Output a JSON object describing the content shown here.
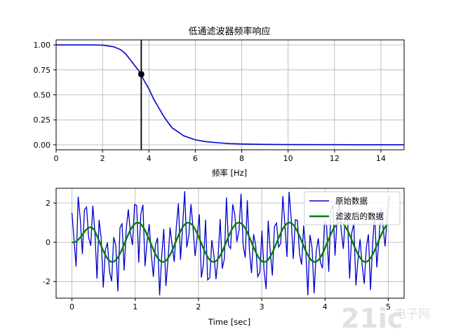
{
  "chart_data": [
    {
      "type": "line",
      "title": "低通滤波器频率响应",
      "xlabel": "频率 [Hz]",
      "ylabel": "",
      "xlim": [
        0,
        15
      ],
      "ylim": [
        -0.05,
        1.05
      ],
      "xticks": [
        "0",
        "2",
        "4",
        "6",
        "8",
        "10",
        "12",
        "14"
      ],
      "yticks": [
        "0.00",
        "0.25",
        "0.50",
        "0.75",
        "1.00"
      ],
      "grid": true,
      "series": [
        {
          "color": "#0000cc",
          "x": [
            0,
            0.5,
            1.0,
            1.5,
            2.0,
            2.5,
            2.8,
            3.0,
            3.2,
            3.4,
            3.6,
            3.8,
            4.0,
            4.2,
            4.4,
            4.6,
            4.8,
            5.0,
            5.5,
            6.0,
            6.5,
            7.0,
            7.5,
            8.0,
            9.0,
            10.0,
            12.0,
            15.0
          ],
          "y": [
            1.0,
            1.0,
            1.0,
            1.0,
            0.998,
            0.98,
            0.95,
            0.91,
            0.85,
            0.79,
            0.73,
            0.64,
            0.56,
            0.46,
            0.38,
            0.3,
            0.23,
            0.17,
            0.09,
            0.05,
            0.03,
            0.02,
            0.012,
            0.008,
            0.004,
            0.002,
            0.001,
            0.0
          ]
        }
      ],
      "cutoff": {
        "x": 3.67,
        "y": 0.707,
        "color": "#000000"
      }
    },
    {
      "type": "line",
      "title": "",
      "xlabel": "Time [sec]",
      "ylabel": "",
      "xlim": [
        -0.25,
        5.25
      ],
      "ylim": [
        -2.85,
        2.75
      ],
      "xticks": [
        "0",
        "1",
        "2",
        "3",
        "4",
        "5"
      ],
      "yticks": [
        "-2",
        "0",
        "2"
      ],
      "grid": true,
      "legend_position": "top-right",
      "series": [
        {
          "name": "原始数据",
          "color": "#0000cc",
          "sampling_interval": 0.033,
          "duration": 5.0
        },
        {
          "name": "滤波后的数据",
          "color": "#008000",
          "period": 0.8,
          "amplitude": 1.0
        }
      ]
    }
  ],
  "watermark": {
    "text": "21ic 电子网"
  }
}
